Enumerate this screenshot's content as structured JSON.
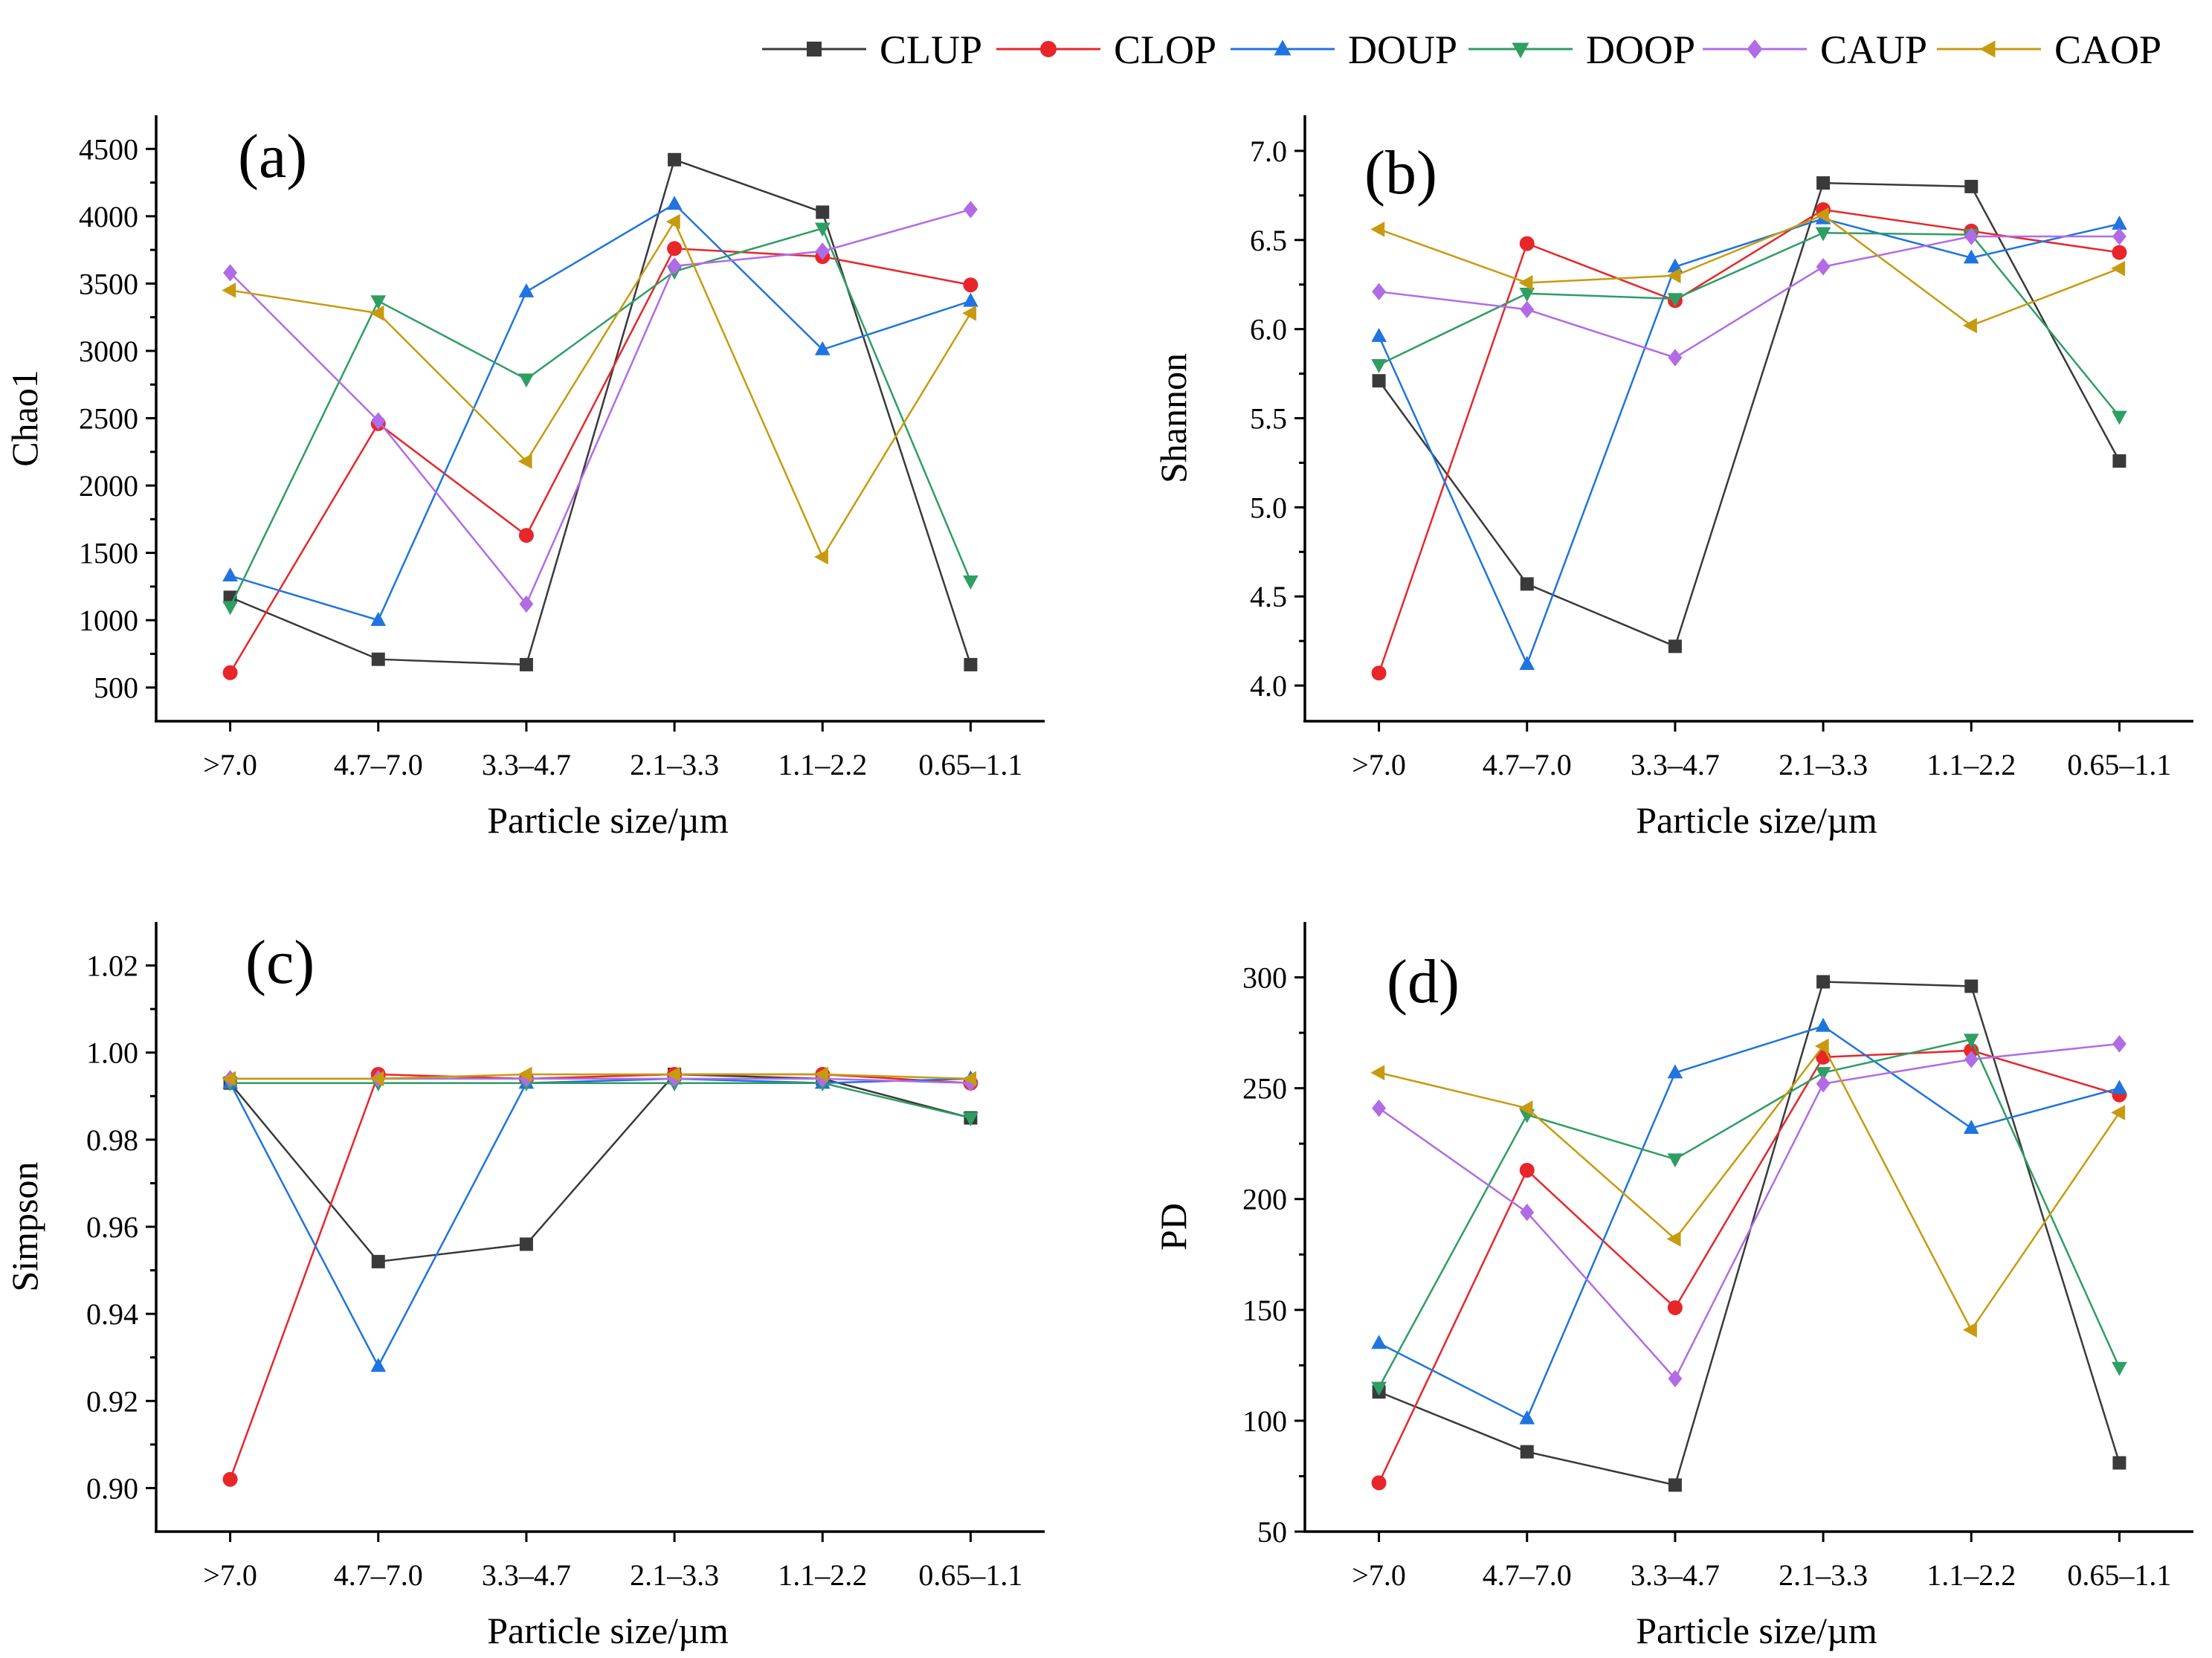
{
  "legend": [
    {
      "name": "CLUP",
      "color": "#3a3a3a",
      "marker": "square"
    },
    {
      "name": "CLOP",
      "color": "#e8262a",
      "marker": "circle"
    },
    {
      "name": "DOUP",
      "color": "#1f74e0",
      "marker": "triangle-up"
    },
    {
      "name": "DOOP",
      "color": "#2e9e63",
      "marker": "triangle-down"
    },
    {
      "name": "CAUP",
      "color": "#b26be6",
      "marker": "diamond"
    },
    {
      "name": "CAOP",
      "color": "#c89a0f",
      "marker": "triangle-left"
    }
  ],
  "chart_data": [
    {
      "type": "line",
      "panel_label": "(a)",
      "title": "",
      "xlabel": "Particle size/µm",
      "ylabel": "Chao1",
      "categories": [
        ">7.0",
        "4.7–7.0",
        "3.3–4.7",
        "2.1–3.3",
        "1.1–2.2",
        "0.65–1.1"
      ],
      "ylim": [
        250,
        4750
      ],
      "yticks": [
        500,
        1000,
        1500,
        2000,
        2500,
        3000,
        3500,
        4000,
        4500
      ],
      "ytick_labels": [
        "500",
        "1000",
        "1500",
        "2000",
        "2500",
        "3000",
        "3500",
        "4000",
        "4500"
      ],
      "series": [
        {
          "name": "CLUP",
          "values": [
            1170,
            710,
            670,
            4420,
            4030,
            670
          ]
        },
        {
          "name": "CLOP",
          "values": [
            610,
            2460,
            1630,
            3760,
            3700,
            3490
          ]
        },
        {
          "name": "DOUP",
          "values": [
            1330,
            1000,
            3440,
            4090,
            3010,
            3370
          ]
        },
        {
          "name": "DOOP",
          "values": [
            1100,
            3370,
            2790,
            3590,
            3910,
            1290
          ]
        },
        {
          "name": "CAUP",
          "values": [
            3580,
            2480,
            1120,
            3630,
            3740,
            4050
          ]
        },
        {
          "name": "CAOP",
          "values": [
            3450,
            3280,
            2180,
            3960,
            1470,
            3280
          ]
        }
      ]
    },
    {
      "type": "line",
      "panel_label": "(b)",
      "title": "",
      "xlabel": "Particle size/µm",
      "ylabel": "Shannon",
      "categories": [
        ">7.0",
        "4.7–7.0",
        "3.3–4.7",
        "2.1–3.3",
        "1.1–2.2",
        "0.65–1.1"
      ],
      "ylim": [
        3.8,
        7.2
      ],
      "yticks": [
        4.0,
        4.5,
        5.0,
        5.5,
        6.0,
        6.5,
        7.0
      ],
      "ytick_labels": [
        "4.0",
        "4.5",
        "5.0",
        "5.5",
        "6.0",
        "6.5",
        "7.0"
      ],
      "series": [
        {
          "name": "CLUP",
          "values": [
            5.71,
            4.57,
            4.22,
            6.82,
            6.8,
            5.26
          ]
        },
        {
          "name": "CLOP",
          "values": [
            4.07,
            6.48,
            6.16,
            6.67,
            6.55,
            6.43
          ]
        },
        {
          "name": "DOUP",
          "values": [
            5.96,
            4.12,
            6.35,
            6.62,
            6.4,
            6.59
          ]
        },
        {
          "name": "DOOP",
          "values": [
            5.8,
            6.2,
            6.17,
            6.54,
            6.53,
            5.51
          ]
        },
        {
          "name": "CAUP",
          "values": [
            6.21,
            6.11,
            5.84,
            6.35,
            6.52,
            6.52
          ]
        },
        {
          "name": "CAOP",
          "values": [
            6.56,
            6.26,
            6.3,
            6.64,
            6.02,
            6.34
          ]
        }
      ]
    },
    {
      "type": "line",
      "panel_label": "(c)",
      "title": "",
      "xlabel": "Particle size/µm",
      "ylabel": "Simpson",
      "categories": [
        ">7.0",
        "4.7–7.0",
        "3.3–4.7",
        "2.1–3.3",
        "1.1–2.2",
        "0.65–1.1"
      ],
      "ylim": [
        0.89,
        1.03
      ],
      "yticks": [
        0.9,
        0.92,
        0.94,
        0.96,
        0.98,
        1.0,
        1.02
      ],
      "ytick_labels": [
        "0.90",
        "0.92",
        "0.94",
        "0.96",
        "0.98",
        "1.00",
        "1.02"
      ],
      "series": [
        {
          "name": "CLUP",
          "values": [
            0.993,
            0.952,
            0.956,
            0.995,
            0.994,
            0.985
          ]
        },
        {
          "name": "CLOP",
          "values": [
            0.902,
            0.995,
            0.994,
            0.995,
            0.995,
            0.993
          ]
        },
        {
          "name": "DOUP",
          "values": [
            0.993,
            0.928,
            0.993,
            0.994,
            0.993,
            0.994
          ]
        },
        {
          "name": "DOOP",
          "values": [
            0.993,
            0.993,
            0.993,
            0.993,
            0.993,
            0.985
          ]
        },
        {
          "name": "CAUP",
          "values": [
            0.994,
            0.994,
            0.994,
            0.994,
            0.994,
            0.993
          ]
        },
        {
          "name": "CAOP",
          "values": [
            0.994,
            0.994,
            0.995,
            0.995,
            0.995,
            0.994
          ]
        }
      ]
    },
    {
      "type": "line",
      "panel_label": "(d)",
      "title": "",
      "xlabel": "Particle size/µm",
      "ylabel": "PD",
      "categories": [
        ">7.0",
        "4.7–7.0",
        "3.3–4.7",
        "2.1–3.3",
        "1.1–2.2",
        "0.65–1.1"
      ],
      "ylim": [
        50,
        325
      ],
      "yticks": [
        50,
        100,
        150,
        200,
        250,
        300
      ],
      "ytick_labels": [
        "50",
        "100",
        "150",
        "200",
        "250",
        "300"
      ],
      "series": [
        {
          "name": "CLUP",
          "values": [
            113,
            86,
            71,
            298,
            296,
            81
          ]
        },
        {
          "name": "CLOP",
          "values": [
            72,
            213,
            151,
            264,
            267,
            247
          ]
        },
        {
          "name": "DOUP",
          "values": [
            135,
            101,
            257,
            278,
            232,
            250
          ]
        },
        {
          "name": "DOOP",
          "values": [
            115,
            238,
            218,
            257,
            272,
            124
          ]
        },
        {
          "name": "CAUP",
          "values": [
            241,
            194,
            119,
            252,
            263,
            270
          ]
        },
        {
          "name": "CAOP",
          "values": [
            257,
            241,
            182,
            269,
            141,
            239
          ]
        }
      ]
    }
  ]
}
